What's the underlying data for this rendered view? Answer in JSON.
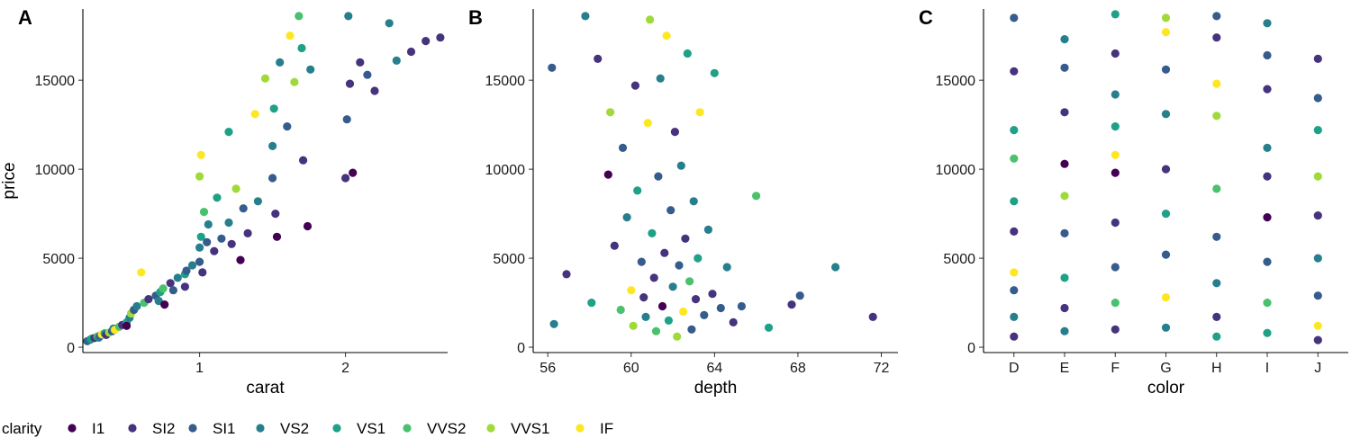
{
  "colors": {
    "I1": "#440154",
    "SI2": "#46337E",
    "SI1": "#365C8D",
    "VS2": "#277F8E",
    "VS1": "#1FA187",
    "VVS2": "#4AC16D",
    "VVS1": "#9FDA3A",
    "IF": "#FDE725"
  },
  "legend": {
    "title": "clarity",
    "items": [
      "I1",
      "SI2",
      "SI1",
      "VS2",
      "VS1",
      "VVS2",
      "VVS1",
      "IF"
    ]
  },
  "chart_data": [
    {
      "type": "scatter",
      "tag": "A",
      "xlabel": "carat",
      "ylabel": "price",
      "xlim": [
        0.2,
        2.7
      ],
      "ylim": [
        -300,
        19000
      ],
      "xticks": [
        1,
        2
      ],
      "yticks": [
        0,
        5000,
        10000,
        15000
      ],
      "points": [
        [
          0.23,
          340,
          "SI1"
        ],
        [
          0.25,
          420,
          "VS2"
        ],
        [
          0.26,
          480,
          "VS1"
        ],
        [
          0.28,
          520,
          "SI2"
        ],
        [
          0.3,
          600,
          "VVS2"
        ],
        [
          0.31,
          540,
          "VS2"
        ],
        [
          0.32,
          660,
          "SI1"
        ],
        [
          0.33,
          720,
          "IF"
        ],
        [
          0.35,
          780,
          "VS1"
        ],
        [
          0.36,
          690,
          "SI2"
        ],
        [
          0.38,
          820,
          "VVS1"
        ],
        [
          0.4,
          900,
          "SI1"
        ],
        [
          0.41,
          1050,
          "VS2"
        ],
        [
          0.42,
          980,
          "IF"
        ],
        [
          0.45,
          1150,
          "VVS2"
        ],
        [
          0.47,
          1250,
          "SI2"
        ],
        [
          0.5,
          1400,
          "VS1"
        ],
        [
          0.5,
          1200,
          "I1"
        ],
        [
          0.52,
          1650,
          "VS2"
        ],
        [
          0.53,
          1900,
          "VVS1"
        ],
        [
          0.55,
          2100,
          "SI1"
        ],
        [
          0.57,
          2300,
          "VS2"
        ],
        [
          0.6,
          4200,
          "IF"
        ],
        [
          0.62,
          2500,
          "VVS2"
        ],
        [
          0.65,
          2700,
          "SI2"
        ],
        [
          0.7,
          2900,
          "SI1"
        ],
        [
          0.72,
          2600,
          "VS2"
        ],
        [
          0.73,
          3100,
          "VS1"
        ],
        [
          0.75,
          3300,
          "VVS2"
        ],
        [
          0.76,
          2400,
          "I1"
        ],
        [
          0.8,
          3600,
          "SI2"
        ],
        [
          0.82,
          3200,
          "SI1"
        ],
        [
          0.85,
          3900,
          "VS2"
        ],
        [
          0.9,
          4100,
          "VS1"
        ],
        [
          0.9,
          3400,
          "SI2"
        ],
        [
          0.91,
          4300,
          "SI1"
        ],
        [
          0.95,
          4600,
          "VS2"
        ],
        [
          1.0,
          4800,
          "SI1"
        ],
        [
          1.0,
          5600,
          "VS2"
        ],
        [
          1.0,
          9600,
          "VVS1"
        ],
        [
          1.01,
          10800,
          "IF"
        ],
        [
          1.01,
          6200,
          "VS1"
        ],
        [
          1.02,
          4200,
          "SI2"
        ],
        [
          1.03,
          7600,
          "VVS2"
        ],
        [
          1.05,
          5900,
          "SI1"
        ],
        [
          1.06,
          6900,
          "VS2"
        ],
        [
          1.1,
          5400,
          "SI2"
        ],
        [
          1.12,
          8400,
          "VS1"
        ],
        [
          1.15,
          6100,
          "SI1"
        ],
        [
          1.2,
          7000,
          "VS2"
        ],
        [
          1.2,
          12100,
          "VS1"
        ],
        [
          1.22,
          5800,
          "SI2"
        ],
        [
          1.25,
          8900,
          "VVS1"
        ],
        [
          1.28,
          4900,
          "I1"
        ],
        [
          1.3,
          7800,
          "SI1"
        ],
        [
          1.33,
          6400,
          "SI2"
        ],
        [
          1.38,
          13100,
          "IF"
        ],
        [
          1.4,
          8200,
          "VS2"
        ],
        [
          1.45,
          15100,
          "VVS1"
        ],
        [
          1.5,
          9500,
          "SI1"
        ],
        [
          1.5,
          11300,
          "VS2"
        ],
        [
          1.51,
          13400,
          "VS1"
        ],
        [
          1.52,
          7500,
          "SI2"
        ],
        [
          1.53,
          6200,
          "I1"
        ],
        [
          1.55,
          16000,
          "VS2"
        ],
        [
          1.6,
          12400,
          "SI1"
        ],
        [
          1.62,
          17500,
          "IF"
        ],
        [
          1.65,
          14900,
          "VVS1"
        ],
        [
          1.68,
          18600,
          "VVS2"
        ],
        [
          1.7,
          16800,
          "VS1"
        ],
        [
          1.71,
          10500,
          "SI2"
        ],
        [
          1.74,
          6800,
          "I1"
        ],
        [
          1.76,
          15600,
          "VS2"
        ],
        [
          2.0,
          9500,
          "SI2"
        ],
        [
          2.01,
          12800,
          "SI1"
        ],
        [
          2.02,
          18600,
          "VS2"
        ],
        [
          2.03,
          14800,
          "SI2"
        ],
        [
          2.05,
          9800,
          "I1"
        ],
        [
          2.1,
          16000,
          "SI2"
        ],
        [
          2.15,
          15300,
          "SI1"
        ],
        [
          2.2,
          14400,
          "SI2"
        ],
        [
          2.3,
          18200,
          "VS2"
        ],
        [
          2.35,
          16100,
          "VS2"
        ],
        [
          2.45,
          16600,
          "SI2"
        ],
        [
          2.55,
          17200,
          "SI2"
        ],
        [
          2.65,
          17400,
          "SI2"
        ]
      ]
    },
    {
      "type": "scatter",
      "tag": "B",
      "xlabel": "depth",
      "ylabel": "",
      "xlim": [
        55.3,
        72.8
      ],
      "ylim": [
        -300,
        19000
      ],
      "xticks": [
        56,
        60,
        64,
        68,
        72
      ],
      "yticks": [
        0,
        5000,
        10000,
        15000
      ],
      "points": [
        [
          56.2,
          15700,
          "SI1"
        ],
        [
          56.3,
          1300,
          "VS2"
        ],
        [
          56.9,
          4100,
          "SI2"
        ],
        [
          57.8,
          18600,
          "VS2"
        ],
        [
          58.1,
          2500,
          "VS1"
        ],
        [
          58.4,
          16200,
          "SI2"
        ],
        [
          58.9,
          9700,
          "I1"
        ],
        [
          59.0,
          13200,
          "VVS1"
        ],
        [
          59.2,
          5700,
          "SI2"
        ],
        [
          59.5,
          2100,
          "VVS2"
        ],
        [
          59.6,
          11200,
          "SI1"
        ],
        [
          59.8,
          7300,
          "VS2"
        ],
        [
          60.0,
          3200,
          "IF"
        ],
        [
          60.1,
          1200,
          "VVS1"
        ],
        [
          60.2,
          14700,
          "SI2"
        ],
        [
          60.3,
          8800,
          "VS1"
        ],
        [
          60.5,
          4800,
          "SI1"
        ],
        [
          60.6,
          2800,
          "SI2"
        ],
        [
          60.7,
          1700,
          "VS2"
        ],
        [
          60.8,
          12600,
          "IF"
        ],
        [
          60.9,
          18400,
          "VVS1"
        ],
        [
          61.0,
          6400,
          "VS1"
        ],
        [
          61.1,
          3900,
          "SI2"
        ],
        [
          61.2,
          900,
          "VVS2"
        ],
        [
          61.3,
          9600,
          "SI1"
        ],
        [
          61.4,
          15100,
          "VS2"
        ],
        [
          61.5,
          2300,
          "I1"
        ],
        [
          61.6,
          5300,
          "SI2"
        ],
        [
          61.7,
          17500,
          "IF"
        ],
        [
          61.8,
          1500,
          "VS1"
        ],
        [
          61.9,
          7700,
          "SI1"
        ],
        [
          62.0,
          3400,
          "VS2"
        ],
        [
          62.1,
          12100,
          "SI2"
        ],
        [
          62.2,
          600,
          "VVS1"
        ],
        [
          62.3,
          4600,
          "SI1"
        ],
        [
          62.4,
          10200,
          "VS2"
        ],
        [
          62.5,
          2000,
          "IF"
        ],
        [
          62.6,
          6100,
          "SI2"
        ],
        [
          62.7,
          16500,
          "VS1"
        ],
        [
          62.8,
          3700,
          "VVS2"
        ],
        [
          62.9,
          1000,
          "SI1"
        ],
        [
          63.0,
          8200,
          "VS2"
        ],
        [
          63.1,
          2700,
          "SI2"
        ],
        [
          63.2,
          5000,
          "VS1"
        ],
        [
          63.3,
          13200,
          "IF"
        ],
        [
          63.5,
          1800,
          "SI1"
        ],
        [
          63.7,
          6600,
          "VS2"
        ],
        [
          63.9,
          3000,
          "SI2"
        ],
        [
          64.0,
          15400,
          "VS1"
        ],
        [
          64.3,
          2200,
          "SI1"
        ],
        [
          64.6,
          4500,
          "VS2"
        ],
        [
          64.9,
          1400,
          "SI2"
        ],
        [
          65.3,
          2300,
          "SI1"
        ],
        [
          66.0,
          8500,
          "VVS2"
        ],
        [
          66.6,
          1100,
          "VS1"
        ],
        [
          67.7,
          2400,
          "SI2"
        ],
        [
          68.1,
          2900,
          "SI1"
        ],
        [
          69.8,
          4500,
          "VS2"
        ],
        [
          71.6,
          1700,
          "SI2"
        ]
      ]
    },
    {
      "type": "scatter",
      "tag": "C",
      "xlabel": "color",
      "ylabel": "",
      "categories": [
        "D",
        "E",
        "F",
        "G",
        "H",
        "I",
        "J"
      ],
      "ylim": [
        -300,
        19000
      ],
      "yticks": [
        0,
        5000,
        10000,
        15000
      ],
      "points": [
        [
          "D",
          18500,
          "SI1"
        ],
        [
          "D",
          15500,
          "SI2"
        ],
        [
          "D",
          12200,
          "VS1"
        ],
        [
          "D",
          10600,
          "VVS2"
        ],
        [
          "D",
          8200,
          "VS1"
        ],
        [
          "D",
          6500,
          "SI2"
        ],
        [
          "D",
          4200,
          "IF"
        ],
        [
          "D",
          3200,
          "SI1"
        ],
        [
          "D",
          1700,
          "VS2"
        ],
        [
          "D",
          600,
          "SI2"
        ],
        [
          "E",
          17300,
          "VS2"
        ],
        [
          "E",
          15700,
          "SI1"
        ],
        [
          "E",
          13200,
          "SI2"
        ],
        [
          "E",
          10300,
          "I1"
        ],
        [
          "E",
          8500,
          "VVS1"
        ],
        [
          "E",
          6400,
          "SI1"
        ],
        [
          "E",
          3900,
          "VS1"
        ],
        [
          "E",
          2200,
          "SI2"
        ],
        [
          "E",
          900,
          "VS2"
        ],
        [
          "F",
          18700,
          "VS1"
        ],
        [
          "F",
          16500,
          "SI2"
        ],
        [
          "F",
          14200,
          "VS2"
        ],
        [
          "F",
          12400,
          "VS1"
        ],
        [
          "F",
          10800,
          "IF"
        ],
        [
          "F",
          9800,
          "I1"
        ],
        [
          "F",
          7000,
          "SI2"
        ],
        [
          "F",
          4500,
          "SI1"
        ],
        [
          "F",
          2500,
          "VVS2"
        ],
        [
          "F",
          1000,
          "SI2"
        ],
        [
          "G",
          18500,
          "VVS1"
        ],
        [
          "G",
          17700,
          "IF"
        ],
        [
          "G",
          15600,
          "SI1"
        ],
        [
          "G",
          13100,
          "VS2"
        ],
        [
          "G",
          10000,
          "SI2"
        ],
        [
          "G",
          7500,
          "VS1"
        ],
        [
          "G",
          5200,
          "SI1"
        ],
        [
          "G",
          2800,
          "IF"
        ],
        [
          "G",
          1100,
          "VS2"
        ],
        [
          "H",
          18600,
          "SI1"
        ],
        [
          "H",
          17400,
          "SI2"
        ],
        [
          "H",
          14800,
          "IF"
        ],
        [
          "H",
          13000,
          "VVS1"
        ],
        [
          "H",
          8900,
          "VVS2"
        ],
        [
          "H",
          6200,
          "SI1"
        ],
        [
          "H",
          3600,
          "VS2"
        ],
        [
          "H",
          1700,
          "SI2"
        ],
        [
          "H",
          600,
          "VS1"
        ],
        [
          "I",
          18200,
          "VS2"
        ],
        [
          "I",
          16400,
          "SI1"
        ],
        [
          "I",
          14500,
          "SI2"
        ],
        [
          "I",
          11200,
          "VS2"
        ],
        [
          "I",
          9600,
          "SI2"
        ],
        [
          "I",
          7300,
          "I1"
        ],
        [
          "I",
          4800,
          "SI1"
        ],
        [
          "I",
          2500,
          "VVS2"
        ],
        [
          "I",
          800,
          "VS1"
        ],
        [
          "J",
          16200,
          "SI2"
        ],
        [
          "J",
          14000,
          "SI1"
        ],
        [
          "J",
          12200,
          "VS1"
        ],
        [
          "J",
          9600,
          "VVS1"
        ],
        [
          "J",
          7400,
          "SI2"
        ],
        [
          "J",
          5000,
          "VS2"
        ],
        [
          "J",
          2900,
          "SI1"
        ],
        [
          "J",
          1200,
          "IF"
        ],
        [
          "J",
          400,
          "SI2"
        ]
      ]
    }
  ]
}
